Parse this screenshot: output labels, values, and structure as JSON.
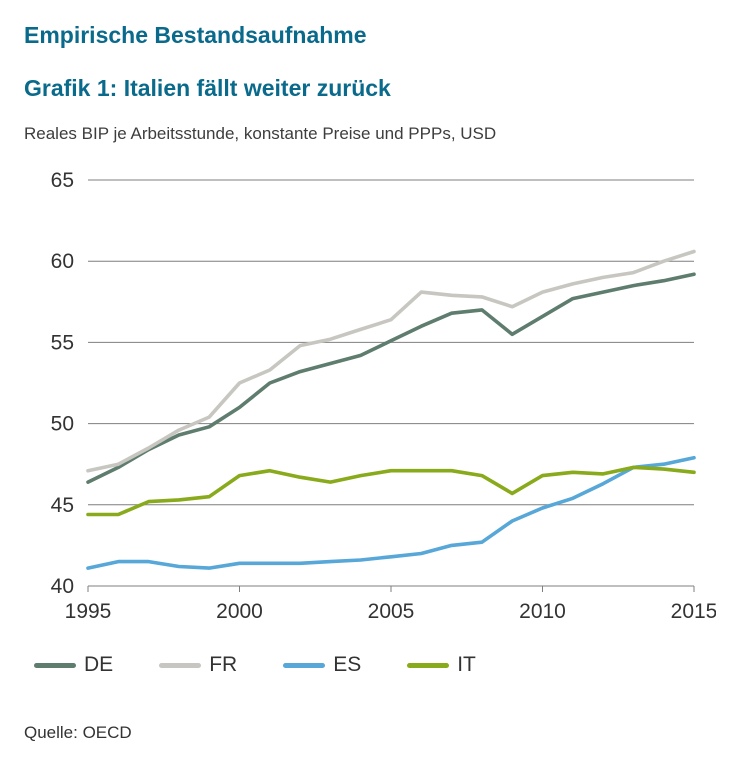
{
  "header": {
    "kicker": "Empirische Bestandsaufnahme",
    "title": "Grafik 1: Italien fällt weiter zurück",
    "subtitle": "Reales BIP je Arbeitsstunde, konstante Preise und PPPs, USD"
  },
  "source": "Quelle: OECD",
  "colors": {
    "title": "#0a6a8b",
    "grid": "#7f7f7f",
    "tick_text": "#333333"
  },
  "chart_data": {
    "type": "line",
    "title": "Grafik 1: Italien fällt weiter zurück",
    "subtitle": "Reales BIP je Arbeitsstunde, konstante Preise und PPPs, USD",
    "xlabel": "",
    "ylabel": "",
    "x": [
      1995,
      1996,
      1997,
      1998,
      1999,
      2000,
      2001,
      2002,
      2003,
      2004,
      2005,
      2006,
      2007,
      2008,
      2009,
      2010,
      2011,
      2012,
      2013,
      2014,
      2015
    ],
    "series": [
      {
        "name": "DE",
        "color": "#5e7d6e",
        "values": [
          46.4,
          47.3,
          48.4,
          49.3,
          49.8,
          51.0,
          52.5,
          53.2,
          53.7,
          54.2,
          55.1,
          56.0,
          56.8,
          57.0,
          55.5,
          56.6,
          57.7,
          58.1,
          58.5,
          58.8,
          59.2
        ]
      },
      {
        "name": "FR",
        "color": "#c7c6c0",
        "values": [
          47.1,
          47.5,
          48.5,
          49.6,
          50.4,
          52.5,
          53.3,
          54.8,
          55.2,
          55.8,
          56.4,
          58.1,
          57.9,
          57.8,
          57.2,
          58.1,
          58.6,
          59.0,
          59.3,
          60.0,
          60.6
        ]
      },
      {
        "name": "ES",
        "color": "#57a7d8",
        "values": [
          41.1,
          41.5,
          41.5,
          41.2,
          41.1,
          41.4,
          41.4,
          41.4,
          41.5,
          41.6,
          41.8,
          42.0,
          42.5,
          42.7,
          44.0,
          44.8,
          45.4,
          46.3,
          47.3,
          47.5,
          47.9
        ]
      },
      {
        "name": "IT",
        "color": "#88aa1b",
        "values": [
          44.4,
          44.4,
          45.2,
          45.3,
          45.5,
          46.8,
          47.1,
          46.7,
          46.4,
          46.8,
          47.1,
          47.1,
          47.1,
          46.8,
          45.7,
          46.8,
          47.0,
          46.9,
          47.3,
          47.2,
          47.0
        ]
      }
    ],
    "ylim": [
      40,
      65
    ],
    "yticks": [
      40,
      45,
      50,
      55,
      60,
      65
    ],
    "xticks": [
      1995,
      2000,
      2005,
      2010,
      2015
    ],
    "grid": true,
    "legend_position": "bottom"
  }
}
